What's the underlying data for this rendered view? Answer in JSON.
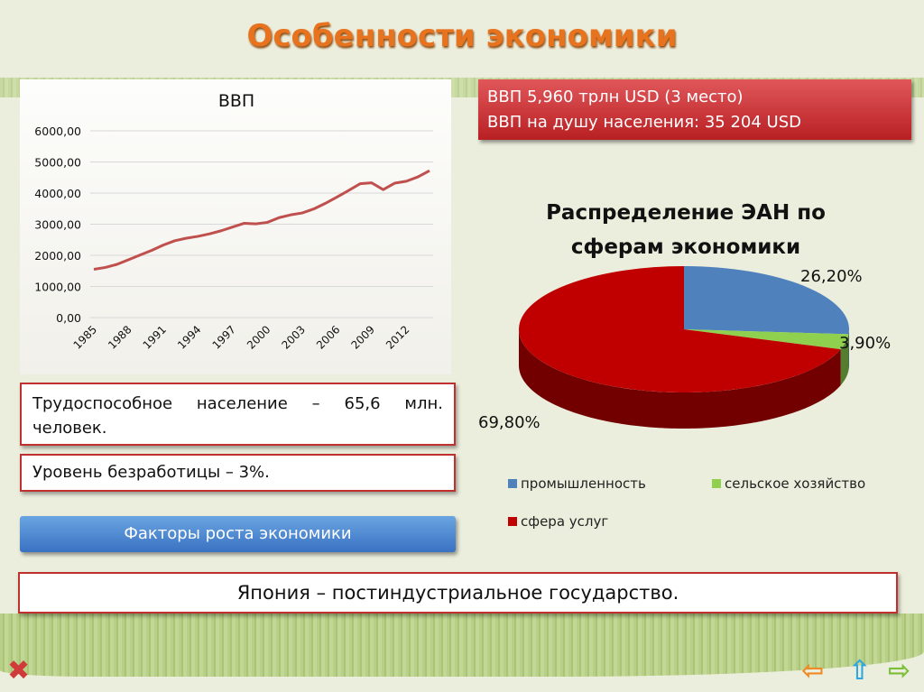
{
  "title": "Особенности экономики",
  "gdp_box": {
    "line1": "ВВП 5,960 трлн USD (3 место)",
    "line2": "ВВП на душу населения: 35 204 USD"
  },
  "labor_text": "Трудоспособное население – 65,6 млн. человек.",
  "unemployment_text": "Уровень безработицы – 3%.",
  "factors_button": "Факторы роста экономики",
  "japan_text": "Япония – постиндустриальное государство.",
  "nav": {
    "close_icon": "red-x-icon",
    "prev_icon": "orange-left-arrow-icon",
    "up_icon": "blue-up-arrow-icon",
    "next_icon": "green-right-arrow-icon"
  },
  "chart_data": [
    {
      "type": "line",
      "title": "ВВП",
      "ylim": [
        0,
        6000
      ],
      "grid": true,
      "yticks": [
        "0,00",
        "1000,00",
        "2000,00",
        "3000,00",
        "4000,00",
        "5000,00",
        "6000,00"
      ],
      "xticks": [
        "1985",
        "1988",
        "1991",
        "1994",
        "1997",
        "2000",
        "2003",
        "2006",
        "2009",
        "2012"
      ],
      "color": "#c0504d",
      "x": [
        1985,
        1986,
        1987,
        1988,
        1989,
        1990,
        1991,
        1992,
        1993,
        1994,
        1995,
        1996,
        1997,
        1998,
        1999,
        2000,
        2001,
        2002,
        2003,
        2004,
        2005,
        2006,
        2007,
        2008,
        2009,
        2010,
        2011,
        2012,
        2013,
        2014
      ],
      "values": [
        1550,
        1610,
        1710,
        1860,
        2010,
        2160,
        2330,
        2470,
        2550,
        2610,
        2690,
        2790,
        2910,
        3030,
        3010,
        3060,
        3210,
        3300,
        3360,
        3490,
        3670,
        3870,
        4080,
        4300,
        4330,
        4110,
        4320,
        4380,
        4520,
        4720
      ]
    },
    {
      "type": "pie",
      "title": "Распределение ЭАН по сферам экономики",
      "legend": "bottom",
      "series": [
        {
          "name": "промышленность",
          "value": 26.2,
          "label": "26,20%",
          "color": "#4f81bd"
        },
        {
          "name": "сельское хозяйство",
          "value": 3.9,
          "label": "3,90%",
          "color": "#8fd14f"
        },
        {
          "name": "сфера услуг",
          "value": 69.8,
          "label": "69,80%",
          "color": "#c00000"
        }
      ]
    }
  ]
}
